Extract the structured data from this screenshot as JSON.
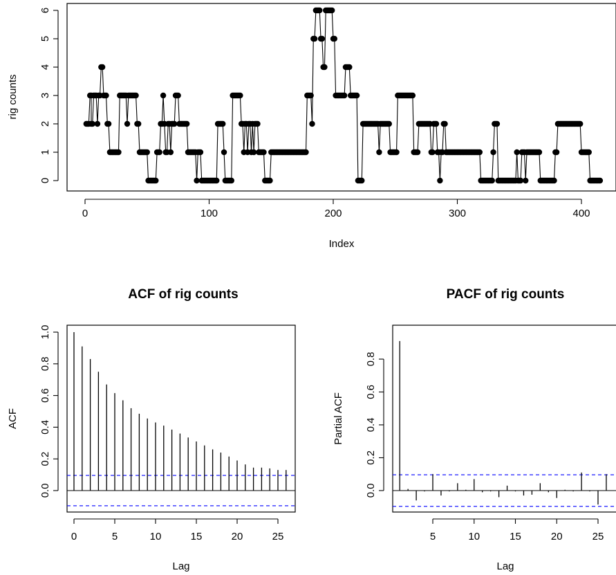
{
  "colors": {
    "series": "#000000",
    "confidence_band": "#0000ff",
    "frame": "#000000"
  },
  "chart_data": [
    {
      "type": "line",
      "title": "",
      "xlabel": "Index",
      "ylabel": "rig counts",
      "xlim": [
        0,
        420
      ],
      "ylim": [
        0,
        6
      ],
      "xticks": [
        0,
        100,
        200,
        300,
        400
      ],
      "yticks": [
        0,
        1,
        2,
        3,
        4,
        5,
        6
      ],
      "xtick_labels": [
        "0",
        "100",
        "200",
        "300",
        "400"
      ],
      "ytick_labels": [
        "0",
        "1",
        "2",
        "3",
        "4",
        "5",
        "6"
      ],
      "grid": false,
      "markers": "filled-circle",
      "runs": [
        [
          1,
          3,
          2
        ],
        [
          4,
          5,
          3
        ],
        [
          5,
          6,
          2
        ],
        [
          7,
          9,
          3
        ],
        [
          10,
          10,
          2
        ],
        [
          11,
          12,
          3
        ],
        [
          13,
          14,
          4
        ],
        [
          15,
          17,
          3
        ],
        [
          18,
          19,
          2
        ],
        [
          20,
          27,
          1
        ],
        [
          28,
          33,
          3
        ],
        [
          34,
          34,
          2
        ],
        [
          35,
          41,
          3
        ],
        [
          42,
          43,
          2
        ],
        [
          44,
          50,
          1
        ],
        [
          51,
          57,
          0
        ],
        [
          58,
          60,
          1
        ],
        [
          61,
          62,
          2
        ],
        [
          63,
          63,
          3
        ],
        [
          64,
          64,
          2
        ],
        [
          65,
          66,
          1
        ],
        [
          67,
          68,
          2
        ],
        [
          69,
          69,
          1
        ],
        [
          70,
          72,
          2
        ],
        [
          73,
          75,
          3
        ],
        [
          76,
          82,
          2
        ],
        [
          83,
          89,
          1
        ],
        [
          90,
          90,
          0
        ],
        [
          91,
          93,
          1
        ],
        [
          94,
          106,
          0
        ],
        [
          107,
          111,
          2
        ],
        [
          112,
          112,
          1
        ],
        [
          113,
          118,
          0
        ],
        [
          119,
          125,
          3
        ],
        [
          126,
          127,
          2
        ],
        [
          128,
          128,
          1
        ],
        [
          129,
          130,
          2
        ],
        [
          131,
          131,
          1
        ],
        [
          132,
          133,
          2
        ],
        [
          134,
          134,
          1
        ],
        [
          135,
          135,
          2
        ],
        [
          136,
          136,
          1
        ],
        [
          137,
          139,
          2
        ],
        [
          140,
          144,
          1
        ],
        [
          145,
          149,
          0
        ],
        [
          150,
          178,
          1
        ],
        [
          179,
          182,
          3
        ],
        [
          183,
          183,
          2
        ],
        [
          184,
          185,
          5
        ],
        [
          186,
          189,
          6
        ],
        [
          190,
          191,
          5
        ],
        [
          192,
          193,
          4
        ],
        [
          194,
          199,
          6
        ],
        [
          200,
          201,
          5
        ],
        [
          202,
          209,
          3
        ],
        [
          210,
          213,
          4
        ],
        [
          214,
          219,
          3
        ],
        [
          220,
          223,
          0
        ],
        [
          224,
          236,
          2
        ],
        [
          237,
          237,
          1
        ],
        [
          238,
          245,
          2
        ],
        [
          246,
          251,
          1
        ],
        [
          252,
          264,
          3
        ],
        [
          265,
          268,
          1
        ],
        [
          269,
          278,
          2
        ],
        [
          279,
          280,
          1
        ],
        [
          281,
          283,
          2
        ],
        [
          284,
          285,
          1
        ],
        [
          286,
          286,
          0
        ],
        [
          287,
          288,
          1
        ],
        [
          289,
          290,
          2
        ],
        [
          291,
          318,
          1
        ],
        [
          319,
          328,
          0
        ],
        [
          329,
          329,
          1
        ],
        [
          330,
          332,
          2
        ],
        [
          333,
          347,
          0
        ],
        [
          348,
          348,
          1
        ],
        [
          349,
          351,
          0
        ],
        [
          352,
          354,
          1
        ],
        [
          355,
          355,
          0
        ],
        [
          356,
          366,
          1
        ],
        [
          367,
          378,
          0
        ],
        [
          379,
          380,
          1
        ],
        [
          381,
          399,
          2
        ],
        [
          400,
          406,
          1
        ],
        [
          407,
          415,
          0
        ]
      ]
    },
    {
      "type": "bar",
      "title": "ACF of rig counts",
      "xlabel": "Lag",
      "ylabel": "ACF",
      "xlim": [
        -0.5,
        27
      ],
      "ylim": [
        -0.12,
        1.0
      ],
      "xticks": [
        0,
        5,
        10,
        15,
        20,
        25
      ],
      "yticks": [
        0.0,
        0.2,
        0.4,
        0.6,
        0.8,
        1.0
      ],
      "xtick_labels": [
        "0",
        "5",
        "10",
        "15",
        "20",
        "25"
      ],
      "ytick_labels": [
        "0.0",
        "0.2",
        "0.4",
        "0.6",
        "0.8",
        "1.0"
      ],
      "lags": [
        0,
        1,
        2,
        3,
        4,
        5,
        6,
        7,
        8,
        9,
        10,
        11,
        12,
        13,
        14,
        15,
        16,
        17,
        18,
        19,
        20,
        21,
        22,
        23,
        24,
        25,
        26
      ],
      "values": [
        1.0,
        0.91,
        0.83,
        0.75,
        0.67,
        0.615,
        0.57,
        0.52,
        0.485,
        0.455,
        0.43,
        0.41,
        0.385,
        0.36,
        0.335,
        0.31,
        0.285,
        0.26,
        0.24,
        0.215,
        0.19,
        0.165,
        0.145,
        0.145,
        0.14,
        0.13,
        0.13
      ],
      "confidence_limit": 0.096,
      "grid": false
    },
    {
      "type": "bar",
      "title": "PACF of rig counts",
      "xlabel": "Lag",
      "ylabel": "Partial ACF",
      "xlim": [
        0,
        27
      ],
      "ylim": [
        -0.12,
        0.92
      ],
      "xticks": [
        5,
        10,
        15,
        20,
        25
      ],
      "yticks": [
        0.0,
        0.2,
        0.4,
        0.6,
        0.8
      ],
      "xtick_labels": [
        "5",
        "10",
        "15",
        "20",
        "25"
      ],
      "ytick_labels": [
        "0.0",
        "0.2",
        "0.4",
        "0.6",
        "0.8"
      ],
      "lags": [
        1,
        2,
        3,
        4,
        5,
        6,
        7,
        8,
        9,
        10,
        11,
        12,
        13,
        14,
        15,
        16,
        17,
        18,
        19,
        20,
        21,
        22,
        23,
        24,
        25,
        26
      ],
      "values": [
        0.91,
        0.01,
        -0.06,
        -0.005,
        0.1,
        -0.03,
        -0.005,
        0.045,
        0.005,
        0.07,
        -0.01,
        -0.005,
        -0.04,
        0.03,
        -0.005,
        -0.03,
        -0.025,
        0.045,
        -0.01,
        -0.045,
        0.005,
        -0.005,
        0.11,
        -0.005,
        -0.085,
        0.1
      ],
      "confidence_limit": 0.096,
      "grid": false
    }
  ]
}
